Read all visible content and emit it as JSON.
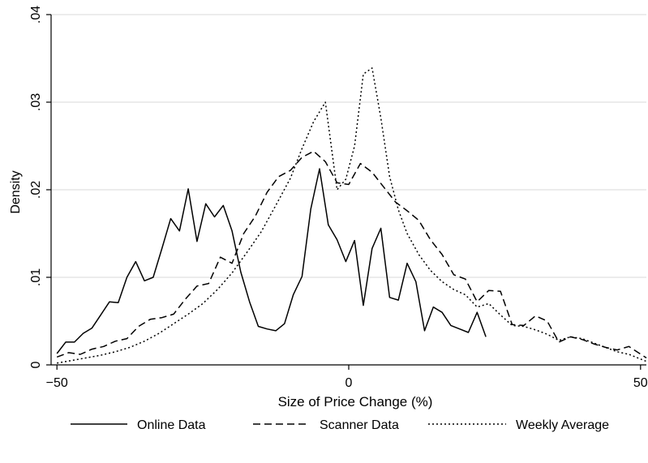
{
  "chart_data": {
    "type": "line",
    "title": "",
    "xlabel": "Size of Price Change (%)",
    "ylabel": "Density",
    "xlim": [
      -51,
      51
    ],
    "ylim": [
      0,
      0.04
    ],
    "x_ticks": [
      {
        "value": -50,
        "label": "−50"
      },
      {
        "value": 0,
        "label": "0"
      },
      {
        "value": 50,
        "label": "50"
      }
    ],
    "y_ticks": [
      {
        "value": 0,
        "label": "0"
      },
      {
        "value": 0.01,
        "label": ".01"
      },
      {
        "value": 0.02,
        "label": ".02"
      },
      {
        "value": 0.03,
        "label": ".03"
      },
      {
        "value": 0.04,
        "label": ".04"
      }
    ],
    "grid": "horizontal",
    "legend_position": "bottom",
    "series": [
      {
        "name": "Online Data",
        "style": "solid",
        "points": [
          [
            -50,
            0.0013
          ],
          [
            -48.5,
            0.0026
          ],
          [
            -47,
            0.0026
          ],
          [
            -45.5,
            0.0036
          ],
          [
            -44,
            0.0042
          ],
          [
            -42.5,
            0.0057
          ],
          [
            -41,
            0.0072
          ],
          [
            -39.5,
            0.0071
          ],
          [
            -38,
            0.01
          ],
          [
            -36.5,
            0.0118
          ],
          [
            -35,
            0.0096
          ],
          [
            -33.5,
            0.01
          ],
          [
            -32,
            0.0133
          ],
          [
            -30.5,
            0.0167
          ],
          [
            -29,
            0.0153
          ],
          [
            -27.5,
            0.0201
          ],
          [
            -26,
            0.0141
          ],
          [
            -24.5,
            0.0184
          ],
          [
            -23,
            0.0169
          ],
          [
            -21.5,
            0.0182
          ],
          [
            -20,
            0.0153
          ],
          [
            -18.5,
            0.0106
          ],
          [
            -17,
            0.0072
          ],
          [
            -15.5,
            0.0044
          ],
          [
            -14,
            0.0041
          ],
          [
            -12.5,
            0.0039
          ],
          [
            -11,
            0.0047
          ],
          [
            -9.5,
            0.008
          ],
          [
            -8,
            0.0101
          ],
          [
            -6.5,
            0.0178
          ],
          [
            -5,
            0.0224
          ],
          [
            -3.5,
            0.016
          ],
          [
            -2,
            0.0143
          ],
          [
            -0.5,
            0.0118
          ],
          [
            1,
            0.0142
          ],
          [
            2.5,
            0.0068
          ],
          [
            4,
            0.0133
          ],
          [
            5.5,
            0.0156
          ],
          [
            7,
            0.0077
          ],
          [
            8.5,
            0.0074
          ],
          [
            10,
            0.0116
          ],
          [
            11.5,
            0.0095
          ],
          [
            13,
            0.0039
          ],
          [
            14.5,
            0.0066
          ],
          [
            16,
            0.006
          ],
          [
            17.5,
            0.0045
          ],
          [
            19,
            0.0041
          ],
          [
            20.5,
            0.0037
          ],
          [
            22,
            0.006
          ],
          [
            23.5,
            0.0032
          ]
        ]
      },
      {
        "name": "Scanner Data",
        "style": "dashed",
        "points": [
          [
            -50,
            0.0009
          ],
          [
            -48,
            0.0014
          ],
          [
            -46,
            0.0012
          ],
          [
            -44,
            0.0018
          ],
          [
            -42,
            0.0021
          ],
          [
            -40,
            0.0027
          ],
          [
            -38,
            0.003
          ],
          [
            -36,
            0.0044
          ],
          [
            -34,
            0.0052
          ],
          [
            -32,
            0.0054
          ],
          [
            -30,
            0.0058
          ],
          [
            -28,
            0.0075
          ],
          [
            -26,
            0.009
          ],
          [
            -24,
            0.0093
          ],
          [
            -22,
            0.0123
          ],
          [
            -20,
            0.0116
          ],
          [
            -18,
            0.015
          ],
          [
            -16,
            0.017
          ],
          [
            -14,
            0.0197
          ],
          [
            -12,
            0.0215
          ],
          [
            -10,
            0.0222
          ],
          [
            -8,
            0.0237
          ],
          [
            -6,
            0.0244
          ],
          [
            -4,
            0.0232
          ],
          [
            -2,
            0.0208
          ],
          [
            0,
            0.0206
          ],
          [
            2,
            0.023
          ],
          [
            4,
            0.022
          ],
          [
            6,
            0.0203
          ],
          [
            8,
            0.0186
          ],
          [
            10,
            0.0176
          ],
          [
            12,
            0.0165
          ],
          [
            14,
            0.0143
          ],
          [
            16,
            0.0126
          ],
          [
            18,
            0.0103
          ],
          [
            20,
            0.0098
          ],
          [
            22,
            0.0072
          ],
          [
            24,
            0.0085
          ],
          [
            26,
            0.0084
          ],
          [
            28,
            0.0046
          ],
          [
            30,
            0.0045
          ],
          [
            32,
            0.0056
          ],
          [
            34,
            0.005
          ],
          [
            36,
            0.0026
          ],
          [
            38,
            0.0032
          ],
          [
            40,
            0.0029
          ],
          [
            42,
            0.0024
          ],
          [
            44,
            0.002
          ],
          [
            46,
            0.0017
          ],
          [
            48,
            0.0021
          ],
          [
            51,
            0.0008
          ]
        ]
      },
      {
        "name": "Weekly Average",
        "style": "dotted",
        "points": [
          [
            -50,
            0.0002
          ],
          [
            -47.5,
            0.0005
          ],
          [
            -45,
            0.0008
          ],
          [
            -42.5,
            0.0011
          ],
          [
            -40,
            0.0015
          ],
          [
            -37.5,
            0.002
          ],
          [
            -35,
            0.0027
          ],
          [
            -32.5,
            0.0036
          ],
          [
            -30,
            0.0047
          ],
          [
            -27.5,
            0.0058
          ],
          [
            -25,
            0.007
          ],
          [
            -22.5,
            0.0086
          ],
          [
            -20,
            0.0105
          ],
          [
            -17.5,
            0.0128
          ],
          [
            -15,
            0.0152
          ],
          [
            -12.5,
            0.0182
          ],
          [
            -10,
            0.0213
          ],
          [
            -8,
            0.0247
          ],
          [
            -6,
            0.0278
          ],
          [
            -4,
            0.03
          ],
          [
            -2,
            0.02
          ],
          [
            -0.5,
            0.0212
          ],
          [
            1,
            0.025
          ],
          [
            2.5,
            0.0332
          ],
          [
            4,
            0.0339
          ],
          [
            5.5,
            0.0282
          ],
          [
            7,
            0.0215
          ],
          [
            8.5,
            0.0177
          ],
          [
            10,
            0.015
          ],
          [
            12,
            0.0126
          ],
          [
            14,
            0.0108
          ],
          [
            16,
            0.0095
          ],
          [
            18,
            0.0086
          ],
          [
            20,
            0.008
          ],
          [
            22,
            0.0066
          ],
          [
            24,
            0.007
          ],
          [
            26,
            0.0057
          ],
          [
            28,
            0.0045
          ],
          [
            30,
            0.0044
          ],
          [
            32,
            0.004
          ],
          [
            34,
            0.0035
          ],
          [
            36,
            0.0028
          ],
          [
            38,
            0.0032
          ],
          [
            40,
            0.003
          ],
          [
            42,
            0.0025
          ],
          [
            44,
            0.002
          ],
          [
            46,
            0.0015
          ],
          [
            48,
            0.0012
          ],
          [
            51,
            0.0004
          ]
        ]
      }
    ]
  }
}
